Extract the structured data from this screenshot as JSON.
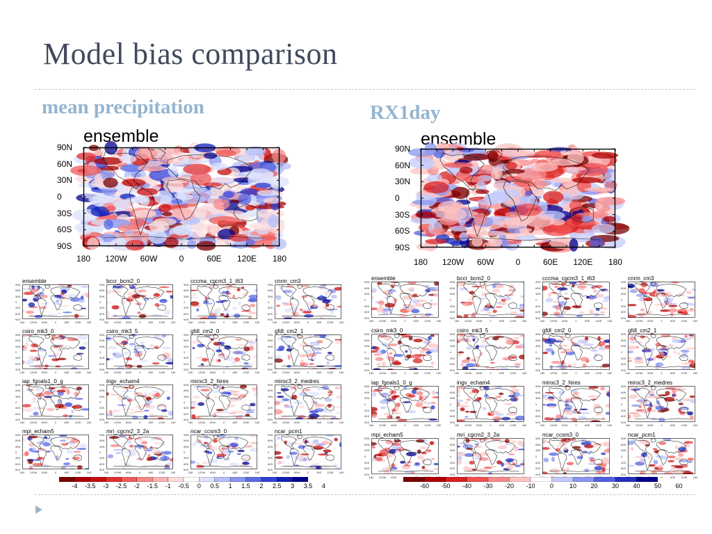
{
  "slide": {
    "title": "Model bias comparison"
  },
  "sections": [
    {
      "heading": "mean precipitation",
      "map_title": "ensemble",
      "lat_labels": [
        "90N",
        "60N",
        "30N",
        "0",
        "30S",
        "60S",
        "90S"
      ],
      "lon_labels": [
        "180",
        "120W",
        "60W",
        "0",
        "60E",
        "120E",
        "180"
      ],
      "models": [
        "ensemble",
        "bccr_bcm2_0",
        "cccma_cgcm3_1_t63",
        "cnrm_cm3",
        "csiro_mk3_0",
        "csiro_mk3_5",
        "gfdl_cm2_0",
        "gfdl_cm2_1",
        "iap_fgoals1_0_g",
        "ingv_echam4",
        "miroc3_2_hires",
        "miroc3_2_medres",
        "mpi_echam5",
        "mri_cgcm2_3_2a",
        "ncar_ccsm3_0",
        "ncar_pcm1"
      ],
      "colorbar_ticks": [
        "-4",
        "-3.5",
        "-3",
        "-2.5",
        "-2",
        "-1.5",
        "-1",
        "-0.5",
        "0",
        "0.5",
        "1",
        "1.5",
        "2",
        "2.5",
        "3",
        "3.5",
        "4"
      ],
      "colors": [
        "#7a0000",
        "#a80000",
        "#c80c0c",
        "#e03030",
        "#f05a5a",
        "#f58888",
        "#f9b3b3",
        "#fcdcdc",
        "#ffffff",
        "#dce1fc",
        "#b3bdf7",
        "#8895ef",
        "#5a6ae4",
        "#3040d8",
        "#1020b8",
        "#00008c"
      ]
    },
    {
      "heading": "RX1day",
      "map_title": "ensemble",
      "lat_labels": [
        "90N",
        "60N",
        "30N",
        "0",
        "30S",
        "60S",
        "90S"
      ],
      "lon_labels": [
        "180",
        "120W",
        "60W",
        "0",
        "60E",
        "120E",
        "180"
      ],
      "models": [
        "ensemble",
        "bccr_bcm2_0",
        "cccma_cgcm3_1_t63",
        "cnrm_cm3",
        "csiro_mk3_0",
        "csiro_mk3_5",
        "gfdl_cm2_0",
        "gfdl_cm2_1",
        "iap_fgoals1_0_g",
        "ingv_echam4",
        "miroc3_2_hires",
        "miroc3_2_medres",
        "mpi_echam5",
        "mri_cgcm2_3_2a",
        "ncar_ccsm3_0",
        "ncar_pcm1"
      ],
      "colorbar_ticks": [
        "-60",
        "-50",
        "-40",
        "-30",
        "-20",
        "-10",
        "0",
        "10",
        "20",
        "30",
        "40",
        "50",
        "60"
      ],
      "colors": [
        "#7a0000",
        "#b00000",
        "#d82020",
        "#f05050",
        "#f78a8a",
        "#fbc4c4",
        "#ffffff",
        "#c4cbfb",
        "#8a97f0",
        "#5060e0",
        "#2030c0",
        "#00008c"
      ]
    }
  ]
}
